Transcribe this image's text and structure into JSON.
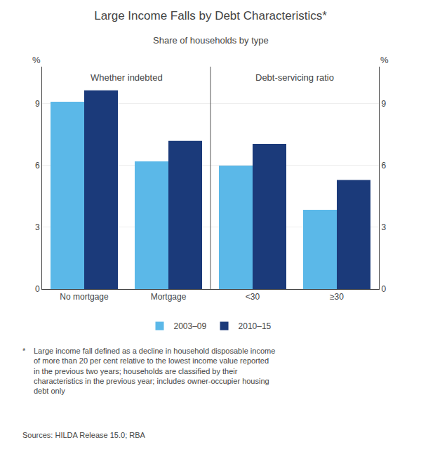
{
  "chart_data": {
    "type": "bar",
    "title": "Large Income Falls by Debt Characteristics*",
    "subtitle": "Share of households by type",
    "ylabel": "%",
    "y2label": "%",
    "categories": [
      "No mortgage",
      "Mortgage",
      "<30",
      "≥30"
    ],
    "annotations": [
      "Whether indebted",
      "Debt-servicing ratio"
    ],
    "series": [
      {
        "name": "2003–09",
        "color": "#5BB8E8",
        "values": [
          9.1,
          6.2,
          6.0,
          3.85
        ]
      },
      {
        "name": "2010–15",
        "color": "#1B3A7A",
        "values": [
          9.65,
          7.2,
          7.05,
          5.3
        ]
      }
    ],
    "ylim": [
      0,
      10.8
    ],
    "yticks": [
      0,
      3,
      6,
      9
    ],
    "y2lim": [
      0,
      10.8
    ],
    "y2ticks": [
      0,
      3,
      6,
      9
    ],
    "grid": true,
    "legend": "bottom",
    "footnote": {
      "marker": "*",
      "text": "Large income fall defined as a decline in household disposable income\nof more than 20 per cent relative to the lowest income value reported\nin the previous two years; households are classified by their\ncharacteristics in the previous year; includes owner-occupier housing\ndebt only"
    },
    "sources": "Sources: HILDA Release 15.0; RBA"
  }
}
